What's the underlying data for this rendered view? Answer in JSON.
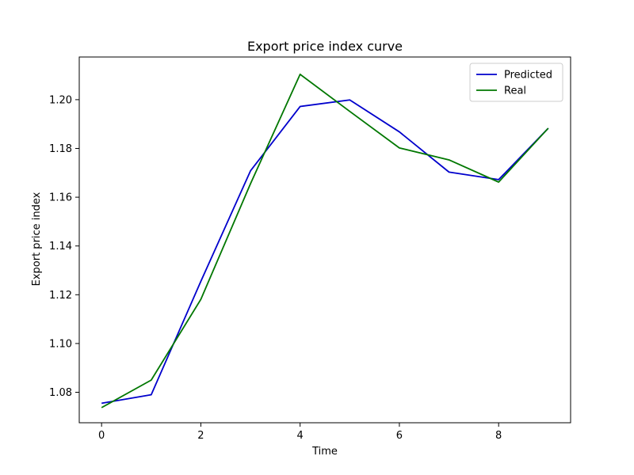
{
  "chart_data": {
    "type": "line",
    "title": "Export price index curve",
    "xlabel": "Time",
    "ylabel": "Export price index",
    "xlim": [
      -0.45,
      9.45
    ],
    "ylim": [
      1.0675,
      1.2175
    ],
    "xticks": [
      0,
      2,
      4,
      6,
      8
    ],
    "xtick_labels": [
      "0",
      "2",
      "4",
      "6",
      "8"
    ],
    "yticks": [
      1.08,
      1.1,
      1.12,
      1.14,
      1.16,
      1.18,
      1.2
    ],
    "ytick_labels": [
      "1.08",
      "1.10",
      "1.12",
      "1.14",
      "1.16",
      "1.18",
      "1.20"
    ],
    "grid": false,
    "legend_position": "top-right",
    "x": [
      0,
      1,
      2,
      3,
      4,
      5,
      6,
      7,
      8,
      9
    ],
    "series": [
      {
        "name": "Predicted",
        "color": "#0000cc",
        "values": [
          1.0755,
          1.079,
          1.1255,
          1.1708,
          1.1972,
          1.1999,
          1.1868,
          1.1703,
          1.1672,
          1.1883
        ]
      },
      {
        "name": "Real",
        "color": "#007700",
        "values": [
          1.0737,
          1.085,
          1.1181,
          1.1655,
          1.2104,
          1.1952,
          1.1802,
          1.1753,
          1.1662,
          1.1883
        ]
      }
    ]
  }
}
